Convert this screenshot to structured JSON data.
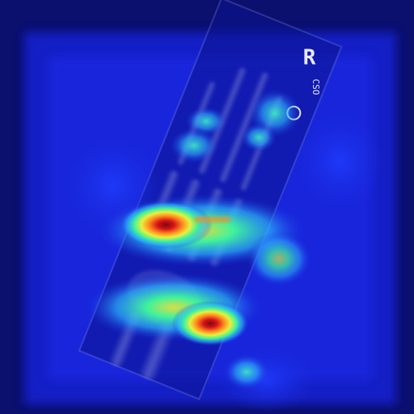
{
  "image": {
    "kind": "radiograph-with-attention-heatmap",
    "subject": "hand x-ray",
    "marker_text": "R",
    "marker_subtext": "CSO",
    "colormap": [
      "#0a0f73",
      "#1c2fe0",
      "#2db3ff",
      "#3ff29b",
      "#e9ef3d",
      "#ff8a1e",
      "#d6141a",
      "#7a0a0a"
    ]
  }
}
